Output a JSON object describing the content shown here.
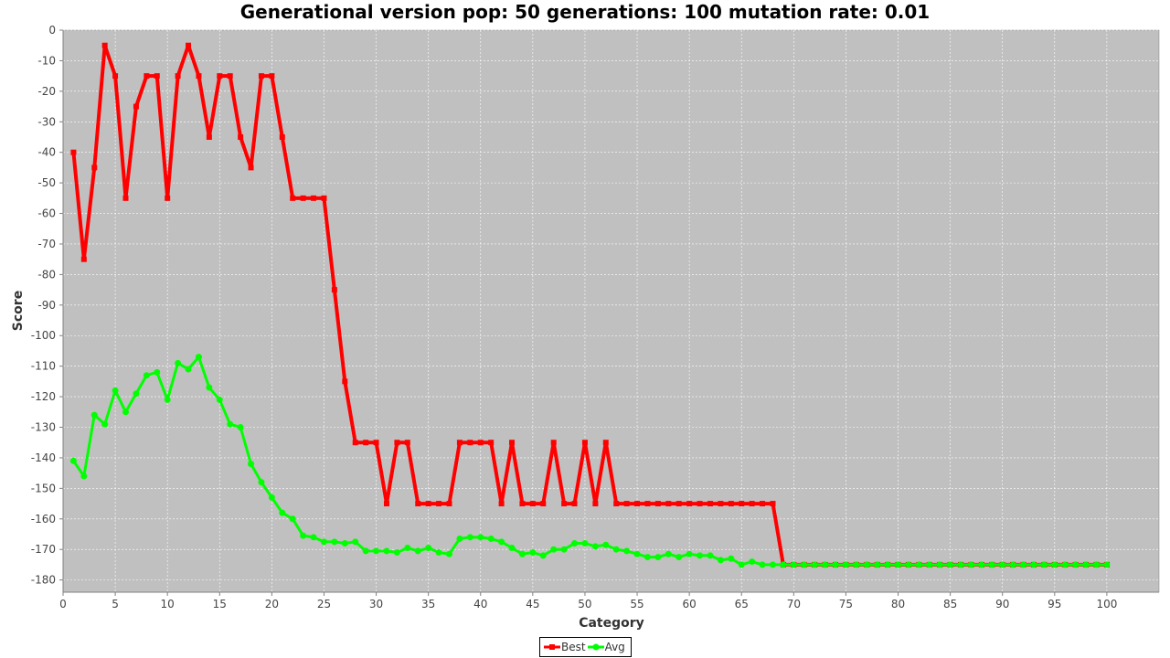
{
  "chart_data": {
    "type": "line",
    "title": "Generational version pop: 50 generations: 100 mutation rate: 0.01",
    "xlabel": "Category",
    "ylabel": "Score",
    "xlim": [
      0,
      105
    ],
    "ylim": [
      -184,
      0
    ],
    "x_ticks": [
      0,
      5,
      10,
      15,
      20,
      25,
      30,
      35,
      40,
      45,
      50,
      55,
      60,
      65,
      70,
      75,
      80,
      85,
      90,
      95,
      100
    ],
    "y_ticks": [
      0,
      -10,
      -20,
      -30,
      -40,
      -50,
      -60,
      -70,
      -80,
      -90,
      -100,
      -110,
      -120,
      -130,
      -140,
      -150,
      -160,
      -170,
      -180
    ],
    "grid": true,
    "legend_position": "bottom",
    "x": [
      1,
      2,
      3,
      4,
      5,
      6,
      7,
      8,
      9,
      10,
      11,
      12,
      13,
      14,
      15,
      16,
      17,
      18,
      19,
      20,
      21,
      22,
      23,
      24,
      25,
      26,
      27,
      28,
      29,
      30,
      31,
      32,
      33,
      34,
      35,
      36,
      37,
      38,
      39,
      40,
      41,
      42,
      43,
      44,
      45,
      46,
      47,
      48,
      49,
      50,
      51,
      52,
      53,
      54,
      55,
      56,
      57,
      58,
      59,
      60,
      61,
      62,
      63,
      64,
      65,
      66,
      67,
      68,
      69,
      70,
      71,
      72,
      73,
      74,
      75,
      76,
      77,
      78,
      79,
      80,
      81,
      82,
      83,
      84,
      85,
      86,
      87,
      88,
      89,
      90,
      91,
      92,
      93,
      94,
      95,
      96,
      97,
      98,
      99,
      100
    ],
    "series": [
      {
        "name": "Best",
        "color": "#ff0000",
        "marker": "square",
        "values": [
          -40,
          -75,
          -45,
          -5,
          -15,
          -55,
          -25,
          -15,
          -15,
          -55,
          -15,
          -5,
          -15,
          -35,
          -15,
          -15,
          -35,
          -45,
          -15,
          -15,
          -35,
          -55,
          -55,
          -55,
          -55,
          -85,
          -115,
          -135,
          -135,
          -135,
          -155,
          -135,
          -135,
          -155,
          -155,
          -155,
          -155,
          -135,
          -135,
          -135,
          -135,
          -155,
          -135,
          -155,
          -155,
          -155,
          -135,
          -155,
          -155,
          -135,
          -155,
          -135,
          -155,
          -155,
          -155,
          -155,
          -155,
          -155,
          -155,
          -155,
          -155,
          -155,
          -155,
          -155,
          -155,
          -155,
          -155,
          -155,
          -175,
          -175,
          -175,
          -175,
          -175,
          -175,
          -175,
          -175,
          -175,
          -175,
          -175,
          -175,
          -175,
          -175,
          -175,
          -175,
          -175,
          -175,
          -175,
          -175,
          -175,
          -175,
          -175,
          -175,
          -175,
          -175,
          -175,
          -175,
          -175,
          -175,
          -175,
          -175
        ]
      },
      {
        "name": "Avg",
        "color": "#00ff00",
        "marker": "circle",
        "values": [
          -141,
          -146,
          -126,
          -129,
          -118,
          -125,
          -119,
          -113,
          -112,
          -121,
          -109,
          -111,
          -107,
          -117,
          -121,
          -129,
          -130,
          -142,
          -148,
          -153,
          -158,
          -160,
          -165.5,
          -166,
          -167.5,
          -167.5,
          -168,
          -167.5,
          -170.5,
          -170.5,
          -170.5,
          -171,
          -169.5,
          -170.5,
          -169.5,
          -171,
          -171.5,
          -166.5,
          -166,
          -166,
          -166.5,
          -167.5,
          -169.5,
          -171.5,
          -171,
          -172,
          -170,
          -170,
          -168,
          -168,
          -169,
          -168.5,
          -170,
          -170.5,
          -171.5,
          -172.5,
          -172.5,
          -171.5,
          -172.5,
          -171.5,
          -172,
          -172,
          -173.5,
          -173,
          -175,
          -174,
          -175,
          -175,
          -175,
          -175,
          -175,
          -175,
          -175,
          -175,
          -175,
          -175,
          -175,
          -175,
          -175,
          -175,
          -175,
          -175,
          -175,
          -175,
          -175,
          -175,
          -175,
          -175,
          -175,
          -175,
          -175,
          -175,
          -175,
          -175,
          -175,
          -175,
          -175,
          -175,
          -175,
          -175
        ]
      }
    ]
  },
  "colors": {
    "plot_background": "#c0c0c0",
    "grid": "#ffffff",
    "axis": "#808080"
  }
}
